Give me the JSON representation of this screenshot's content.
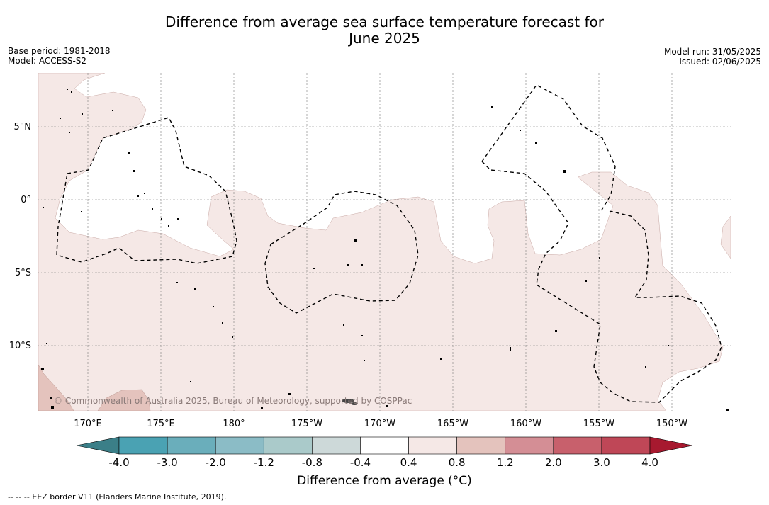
{
  "title_line1": "Difference from average sea surface temperature forecast for",
  "title_line2": "June 2025",
  "meta_left": {
    "base_period": "Base period: 1981-2018",
    "model": "Model: ACCESS-S2"
  },
  "meta_right": {
    "model_run": "Model run: 31/05/2025",
    "issued": "Issued: 02/06/2025"
  },
  "lat_labels": [
    "5°N",
    "0°",
    "5°S",
    "10°S"
  ],
  "lon_labels": [
    "170°E",
    "175°E",
    "180°",
    "175°W",
    "170°W",
    "165°W",
    "160°W",
    "155°W",
    "150°W"
  ],
  "copyright": "© Commonwealth of Australia 2025, Bureau of Meteorology, supported by COSPPac",
  "colorbar": {
    "title": "Difference from average (°C)",
    "tick_labels": [
      "-4.0",
      "-3.0",
      "-2.0",
      "-1.2",
      "-0.8",
      "-0.4",
      "0.4",
      "0.8",
      "1.2",
      "2.0",
      "3.0",
      "4.0"
    ],
    "colors": [
      "#3b7f88",
      "#4aa2b3",
      "#6aaebb",
      "#8bbcc6",
      "#aacaca",
      "#cdd9d9",
      "#ffffff",
      "#f5e8e6",
      "#e4c3bd",
      "#d48e95",
      "#c8606c",
      "#bf4757",
      "#a7192f"
    ]
  },
  "footer_legend": "--  --  -- EEZ border V11 (Flanders Marine Institute, 2019)."
}
